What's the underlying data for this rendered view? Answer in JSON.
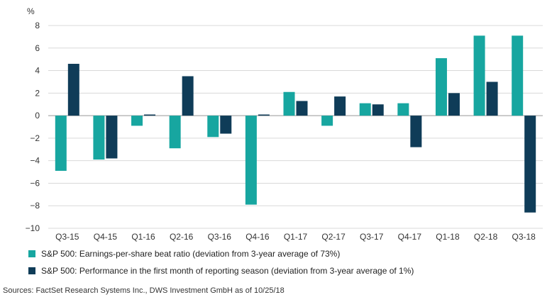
{
  "chart_data": {
    "type": "bar",
    "unit_label": "%",
    "categories": [
      "Q3-15",
      "Q4-15",
      "Q1-16",
      "Q2-16",
      "Q3-16",
      "Q4-16",
      "Q1-17",
      "Q2-17",
      "Q3-17",
      "Q4-17",
      "Q1-18",
      "Q2-18",
      "Q3-18"
    ],
    "series": [
      {
        "name": "S&P 500: Earnings-per-share beat ratio (deviation from 3-year average of 73%)",
        "color": "#17a6a0",
        "values": [
          -4.9,
          -3.9,
          -0.9,
          -2.9,
          -1.9,
          -7.9,
          2.1,
          -0.9,
          1.1,
          1.1,
          5.1,
          7.1,
          7.1
        ]
      },
      {
        "name": "S&P 500: Performance in the first month of reporting season (deviation from 3-year average of 1%)",
        "color": "#0f3c58",
        "values": [
          4.6,
          -3.8,
          0.1,
          3.5,
          -1.6,
          0.1,
          1.3,
          1.7,
          1.0,
          -2.8,
          2.0,
          3.0,
          -8.6
        ]
      }
    ],
    "ylim": [
      -10,
      8
    ],
    "yticks": [
      8,
      6,
      4,
      2,
      0,
      -2,
      -4,
      -6,
      -8,
      -10
    ],
    "ytick_labels": [
      "8",
      "6",
      "4",
      "2",
      "0",
      "−2",
      "−4",
      "−6",
      "−8",
      "−10"
    ],
    "grid": true,
    "legend_position": "bottom-left"
  },
  "source": "Sources: FactSet Research Systems Inc., DWS Investment GmbH as of 10/25/18"
}
